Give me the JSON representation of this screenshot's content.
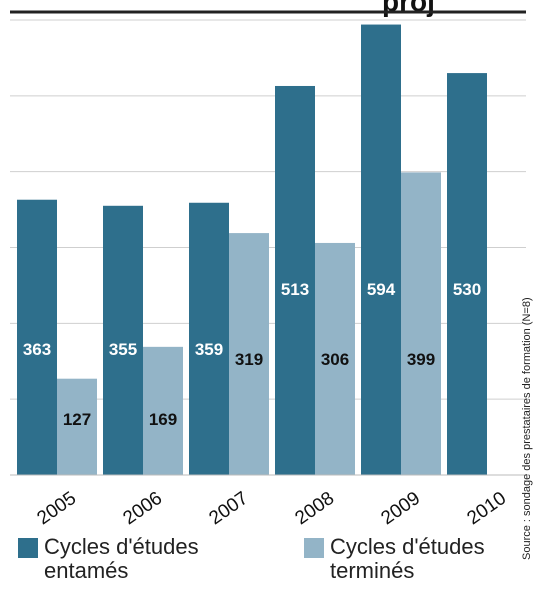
{
  "header_fragment": "proj",
  "chart_data": {
    "type": "bar",
    "categories": [
      "2005",
      "2006",
      "2007",
      "2008",
      "2009",
      "2010"
    ],
    "series": [
      {
        "name": "Cycles d'études entamés",
        "values": [
          363,
          355,
          359,
          513,
          594,
          530
        ],
        "color": "#2e6f8c",
        "label_color": "#ffffff"
      },
      {
        "name": "Cycles d'études terminés",
        "values": [
          127,
          169,
          319,
          306,
          399,
          null
        ],
        "color": "#93b4c7",
        "label_color": "#111111"
      }
    ],
    "ylim": [
      0,
      600
    ],
    "grid": true,
    "legend_position": "bottom"
  },
  "source": "Source : sondage des prestataires de formation (N=8)"
}
